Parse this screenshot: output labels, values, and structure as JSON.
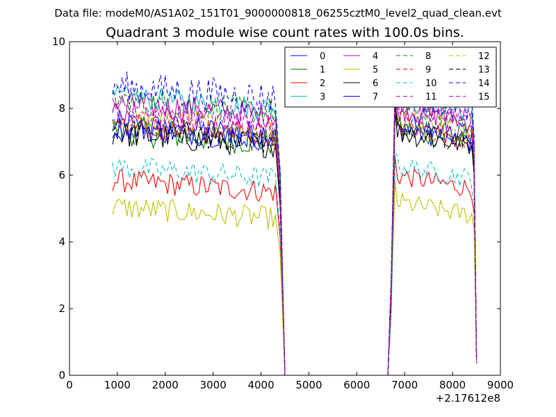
{
  "figure": {
    "suptitle": "Data file: modeM0/AS1A02_151T01_9000000818_06255cztM0_level2_quad_clean.evt"
  },
  "chart_data": {
    "type": "line",
    "title": "Quadrant 3 module wise count rates with 100.0s bins.",
    "xlabel": "",
    "ylabel": "",
    "xlim": [
      0,
      9000
    ],
    "ylim": [
      0,
      10
    ],
    "x_offset_label": "+2.17612e8",
    "x_ticks": [
      0,
      1000,
      2000,
      3000,
      4000,
      5000,
      6000,
      7000,
      8000,
      9000
    ],
    "x_tick_labels": [
      "0",
      "1000",
      "2000",
      "3000",
      "4000",
      "5000",
      "6000",
      "7000",
      "8000",
      "9000"
    ],
    "y_ticks": [
      0,
      2,
      4,
      6,
      8,
      10
    ],
    "y_tick_labels": [
      "0",
      "2",
      "4",
      "6",
      "8",
      "10"
    ],
    "legend_position": "top-right",
    "legend_columns": 4,
    "segments": [
      {
        "x_start": 900,
        "x_end": 4300,
        "y_to": 0,
        "x_zero": 4500
      },
      {
        "x_start": 6650,
        "x_end": 6800,
        "x_last": 8500
      }
    ],
    "series": [
      {
        "name": "0",
        "color": "#0000ff",
        "dash": "solid",
        "level1": 7.2,
        "amp1": 0.4,
        "level2": 7.0,
        "amp2": 0.35
      },
      {
        "name": "1",
        "color": "#008000",
        "dash": "solid",
        "level1": 7.0,
        "amp1": 0.45,
        "level2": 7.0,
        "amp2": 0.4
      },
      {
        "name": "2",
        "color": "#ff0000",
        "dash": "solid",
        "level1": 5.5,
        "amp1": 0.35,
        "level2": 5.6,
        "amp2": 0.3
      },
      {
        "name": "3",
        "color": "#00bfbf",
        "dash": "solid",
        "level1": 8.0,
        "amp1": 0.35,
        "level2": 7.9,
        "amp2": 0.3
      },
      {
        "name": "4",
        "color": "#bf00bf",
        "dash": "solid",
        "level1": 7.8,
        "amp1": 0.4,
        "level2": 7.6,
        "amp2": 0.35
      },
      {
        "name": "5",
        "color": "#bfbf00",
        "dash": "solid",
        "level1": 4.7,
        "amp1": 0.35,
        "level2": 4.8,
        "amp2": 0.3
      },
      {
        "name": "6",
        "color": "#000000",
        "dash": "solid",
        "level1": 6.9,
        "amp1": 0.4,
        "level2": 6.9,
        "amp2": 0.35
      },
      {
        "name": "7",
        "color": "#0000ff",
        "dash": "solid",
        "level1": 7.1,
        "amp1": 0.4,
        "level2": 7.2,
        "amp2": 0.35
      },
      {
        "name": "8",
        "color": "#008000",
        "dash": "dashed",
        "level1": 7.9,
        "amp1": 0.4,
        "level2": 7.6,
        "amp2": 0.35
      },
      {
        "name": "9",
        "color": "#ff0000",
        "dash": "dashed",
        "level1": 7.2,
        "amp1": 0.4,
        "level2": 7.1,
        "amp2": 0.35
      },
      {
        "name": "10",
        "color": "#00bfbf",
        "dash": "dashed",
        "level1": 5.9,
        "amp1": 0.35,
        "level2": 5.9,
        "amp2": 0.3
      },
      {
        "name": "11",
        "color": "#bf00bf",
        "dash": "dashed",
        "level1": 7.6,
        "amp1": 0.4,
        "level2": 7.8,
        "amp2": 0.35
      },
      {
        "name": "12",
        "color": "#bfbf00",
        "dash": "dashed",
        "level1": 7.3,
        "amp1": 0.4,
        "level2": 7.3,
        "amp2": 0.35
      },
      {
        "name": "13",
        "color": "#000000",
        "dash": "dashed",
        "level1": 7.0,
        "amp1": 0.4,
        "level2": 7.0,
        "amp2": 0.35
      },
      {
        "name": "14",
        "color": "#0000ff",
        "dash": "dashed",
        "level1": 8.3,
        "amp1": 0.5,
        "level2": 8.0,
        "amp2": 0.4
      },
      {
        "name": "15",
        "color": "#bf00bf",
        "dash": "dashed",
        "level1": 7.4,
        "amp1": 0.4,
        "level2": 7.6,
        "amp2": 0.35
      }
    ]
  }
}
